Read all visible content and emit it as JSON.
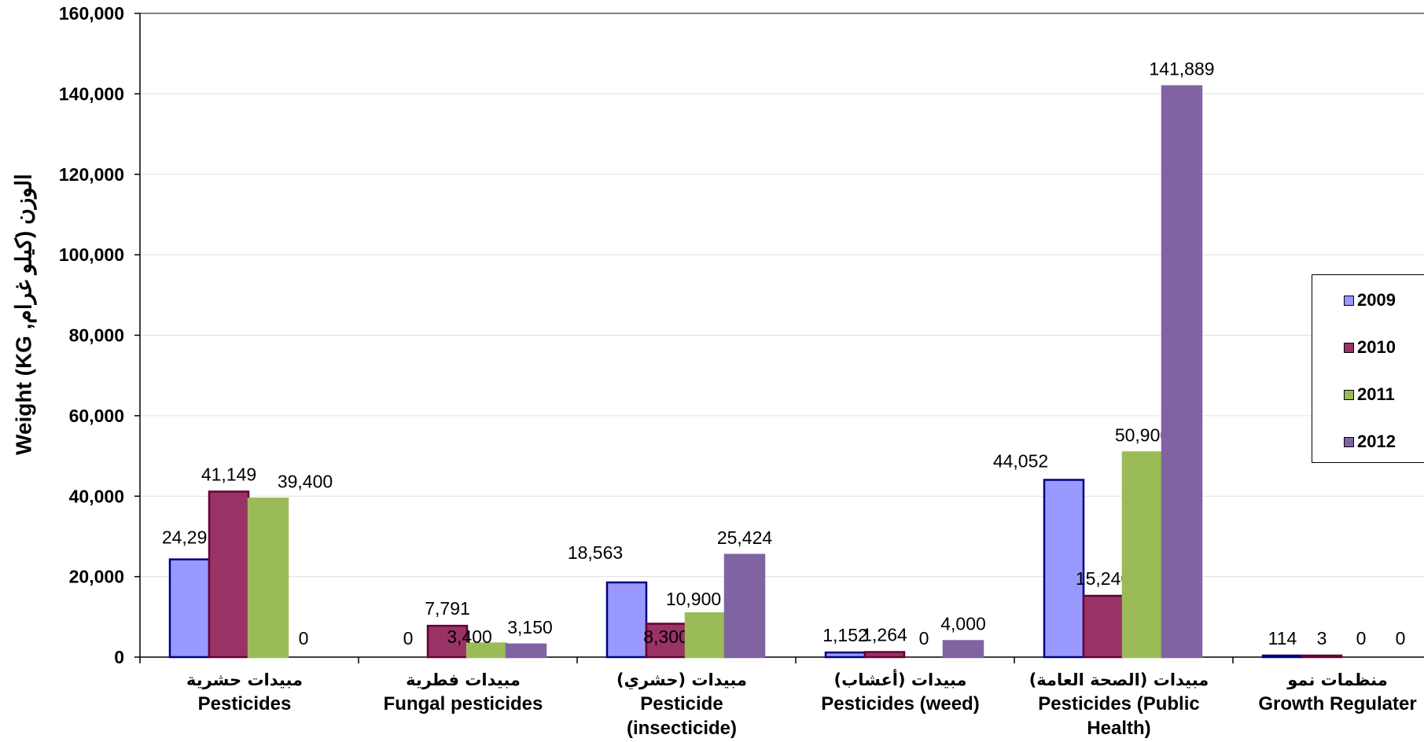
{
  "chart_data": {
    "type": "bar",
    "ylabel": "Weight (KG ,الوزن (كيلو غرام",
    "ylim": [
      0,
      160000
    ],
    "yticks": [
      "0",
      "20,000",
      "40,000",
      "60,000",
      "80,000",
      "100,000",
      "120,000",
      "140,000",
      "160,000"
    ],
    "ytick_values": [
      0,
      20000,
      40000,
      60000,
      80000,
      100000,
      120000,
      140000,
      160000
    ],
    "grid": true,
    "legend_position": "right",
    "categories": [
      {
        "arabic": "مبيدات حشرية",
        "english": [
          "Pesticides"
        ]
      },
      {
        "arabic": "مبيدات فطرية",
        "english": [
          "Fungal pesticides"
        ]
      },
      {
        "arabic": "مبيدات (حشري)",
        "english": [
          "Pesticide",
          "(insecticide)"
        ]
      },
      {
        "arabic": "مبيدات (أعشاب)",
        "english": [
          "Pesticides (weed)"
        ]
      },
      {
        "arabic": "مبيدات (الصحة العامة)",
        "english": [
          "Pesticides (Public",
          "Health)"
        ]
      },
      {
        "arabic": "منظمات نمو",
        "english": [
          "Growth Regulater"
        ]
      }
    ],
    "series": [
      {
        "name": "2009",
        "color": "#9999ff",
        "border": "#000080",
        "values": [
          24291,
          0,
          18563,
          1152,
          44052,
          114
        ],
        "labels": [
          "24,291",
          "0",
          "18,563",
          "1,152",
          "44,052",
          "114"
        ]
      },
      {
        "name": "2010",
        "color": "#993366",
        "border": "#660033",
        "values": [
          41149,
          7791,
          8300,
          1264,
          15240,
          3
        ],
        "labels": [
          "41,149",
          "7,791",
          "8,300",
          "1,264",
          "15,240",
          "3"
        ]
      },
      {
        "name": "2011",
        "color": "#9bbb59",
        "border": "#9bbb59",
        "values": [
          39400,
          3400,
          10900,
          0,
          50900,
          0
        ],
        "labels": [
          "39,400",
          "3,400",
          "10,900",
          "0",
          "50,900",
          "0"
        ]
      },
      {
        "name": "2012",
        "color": "#8064a2",
        "border": "#8064a2",
        "values": [
          0,
          3150,
          25424,
          4000,
          141889,
          0
        ],
        "labels": [
          "0",
          "3,150",
          "25,424",
          "4,000",
          "141,889",
          "0"
        ]
      }
    ]
  }
}
